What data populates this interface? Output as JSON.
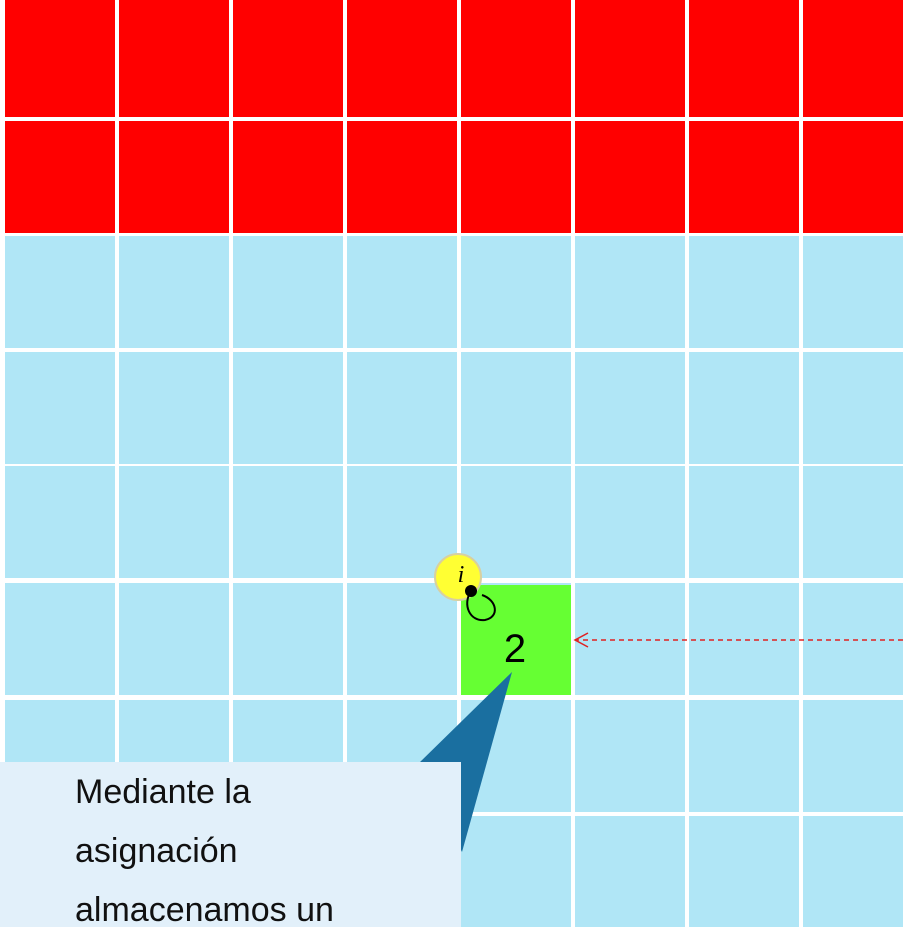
{
  "cell_value": "2",
  "pointer_label": "i",
  "callout": {
    "lines": [
      "Mediante la",
      "asignación",
      "almacenamos un"
    ]
  }
}
